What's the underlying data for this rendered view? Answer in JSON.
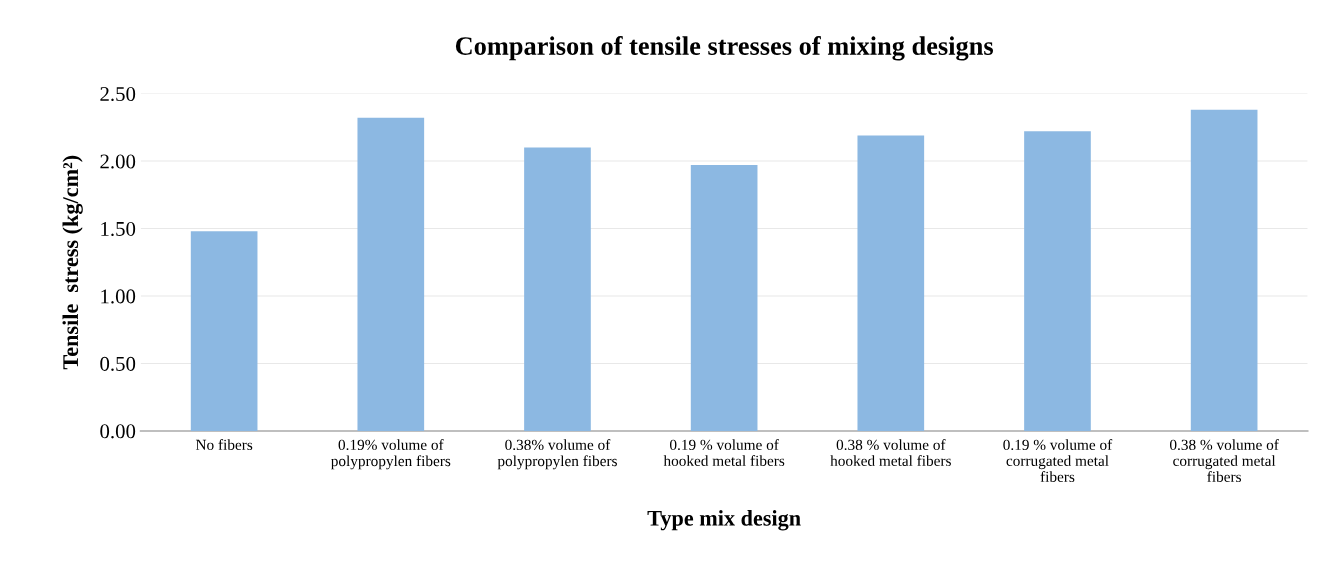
{
  "chart_data": {
    "type": "bar",
    "title": "Comparison of tensile stresses of mixing designs",
    "xlabel": "Type mix design",
    "ylabel": "Tensile  stress (kg/cm²)",
    "categories": [
      "No fibers",
      "0.19% volume of\npolypropylen fibers",
      "0.38% volume of\npolypropylen fibers",
      "0.19 % volume of\nhooked metal fibers",
      "0.38 % volume of\nhooked metal fibers",
      "0.19 % volume of\ncorrugated metal\nfibers",
      "0.38 % volume of\ncorrugated metal\nfibers"
    ],
    "values": [
      1.48,
      2.32,
      2.1,
      1.97,
      2.19,
      2.22,
      2.38
    ],
    "color": "#8cb8e2",
    "ylim": [
      0,
      2.5
    ],
    "yticks": [
      {
        "value": 0,
        "label": "0.00"
      },
      {
        "value": 0.5,
        "label": "0.50"
      },
      {
        "value": 1,
        "label": "1.00"
      },
      {
        "value": 1.5,
        "label": "1.50"
      },
      {
        "value": 2,
        "label": "2.00"
      },
      {
        "value": 2.5,
        "label": "2.50"
      }
    ],
    "grid": "y"
  }
}
